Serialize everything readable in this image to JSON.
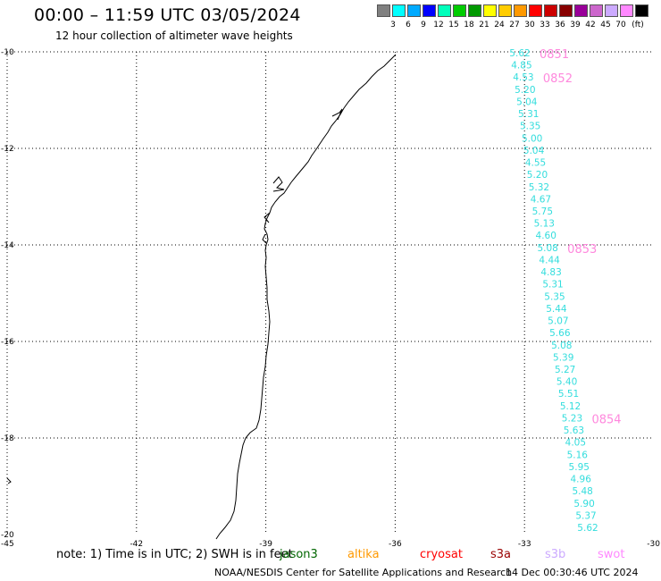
{
  "header": {
    "title": "00:00 – 11:59 UTC 03/05/2024",
    "subtitle": "12 hour collection of altimeter wave heights"
  },
  "legend": {
    "colors": [
      "#808080",
      "#00ffff",
      "#00aaff",
      "#0000ff",
      "#00ffbb",
      "#00cc00",
      "#009900",
      "#ffff00",
      "#ffcc00",
      "#ff9900",
      "#ff0000",
      "#cc0000",
      "#880000",
      "#990099",
      "#cc66cc",
      "#ccaaff",
      "#ff88ff",
      "#000000"
    ],
    "levels": [
      "3",
      "6",
      "9",
      "12",
      "15",
      "18",
      "21",
      "24",
      "27",
      "30",
      "33",
      "36",
      "39",
      "42",
      "45",
      "70"
    ],
    "unit": "(ft)"
  },
  "axes": {
    "lat_labels": [
      "-10",
      "-12",
      "-14",
      "-16",
      "-18",
      "-20"
    ],
    "lon_labels": [
      "-45",
      "-42",
      "-39",
      "-36",
      "-33",
      "-30"
    ]
  },
  "track": {
    "color": "#33dddd",
    "time_color": "#ff88dd",
    "readings": [
      "5.62",
      "4.85",
      "4.53",
      "5.20",
      "5.04",
      "5.31",
      "5.35",
      "5.00",
      "5.04",
      "4.55",
      "5.20",
      "5.32",
      "4.67",
      "5.75",
      "5.13",
      "4.60",
      "5.08",
      "4.44",
      "4.83",
      "5.31",
      "5.35",
      "5.44",
      "5.07",
      "5.66",
      "5.08",
      "5.39",
      "5.27",
      "5.40",
      "5.51",
      "5.12",
      "5.23",
      "5.63",
      "4.05",
      "5.16",
      "5.95",
      "4.96",
      "5.48",
      "5.90",
      "5.37",
      "5.62"
    ],
    "time_marks": [
      {
        "label": "0851",
        "index": 0
      },
      {
        "label": "0852",
        "index": 2
      },
      {
        "label": "0853",
        "index": 16
      },
      {
        "label": "0854",
        "index": 30
      }
    ]
  },
  "footer": {
    "note": "note: 1) Time is in UTC; 2) SWH is in feet",
    "satellites": [
      {
        "name": "jason3",
        "color": "#006600"
      },
      {
        "name": "altika",
        "color": "#ff9900"
      },
      {
        "name": "cryosat",
        "color": "#ff0000"
      },
      {
        "name": "s3a",
        "color": "#990000"
      },
      {
        "name": "s3b",
        "color": "#ccaaff"
      },
      {
        "name": "swot",
        "color": "#ff88ff"
      }
    ],
    "org": "NOAA/NESDIS Center for Satellite Applications and Research",
    "timestamp": "14 Dec 00:30:46 UTC 2024"
  }
}
